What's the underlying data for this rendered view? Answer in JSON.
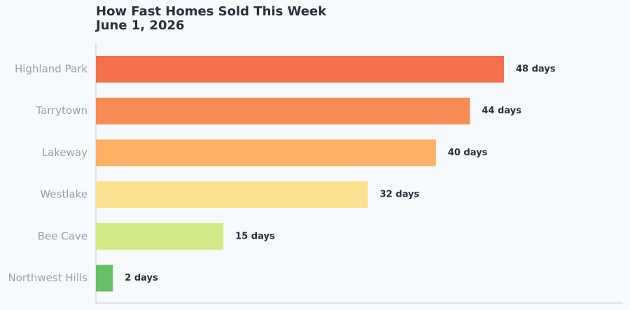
{
  "chart_data": {
    "type": "hbar",
    "title": "How Fast Homes Sold This Week",
    "subtitle": "June 1, 2026",
    "categories": [
      "Highland Park",
      "Tarrytown",
      "Lakeway",
      "Westlake",
      "Bee Cave",
      "Northwest Hills"
    ],
    "values": [
      48,
      44,
      40,
      32,
      15,
      2
    ],
    "value_labels": [
      "48 days",
      "44 days",
      "40 days",
      "32 days",
      "15 days",
      "2 days"
    ],
    "colors": [
      "#f4704a",
      "#f98b56",
      "#fdb165",
      "#fde08f",
      "#d1ea85",
      "#67bf67"
    ],
    "xlim": [
      0,
      62
    ]
  }
}
